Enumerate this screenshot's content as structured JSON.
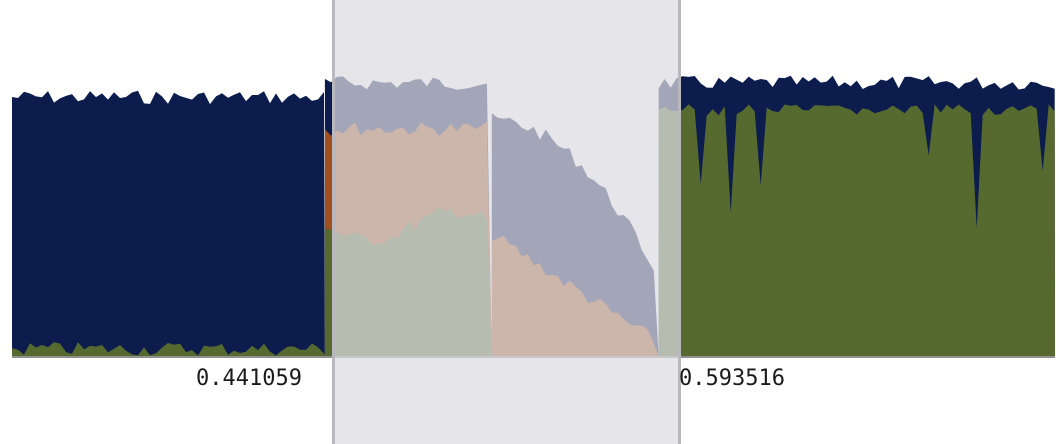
{
  "chart_data": {
    "type": "area",
    "stacked": true,
    "x_tick_labels": [
      "0.441059",
      "0.593516"
    ],
    "selection": {
      "from": "0.441059",
      "to": "0.593516"
    },
    "ylim": [
      0,
      1
    ],
    "series": [
      {
        "key": "green",
        "color": "#56692f"
      },
      {
        "key": "orange",
        "color": "#a0501e"
      },
      {
        "key": "navy",
        "color": "#0c1c4d"
      }
    ],
    "segments": [
      {
        "x": [
          0.0,
          0.3
        ],
        "green": 0.05,
        "orange": 0.0,
        "navy": 0.93
      },
      {
        "x": [
          0.3,
          0.46
        ],
        "green": 0.48,
        "orange": 0.82,
        "navy": 0.98
      },
      {
        "x": [
          0.46,
          0.62
        ],
        "green": 0.0,
        "orange": 0.45,
        "navy": 0.85
      },
      {
        "x": [
          0.62,
          1.0
        ],
        "green": 0.88,
        "orange": 0.0,
        "navy": 0.98
      }
    ]
  }
}
